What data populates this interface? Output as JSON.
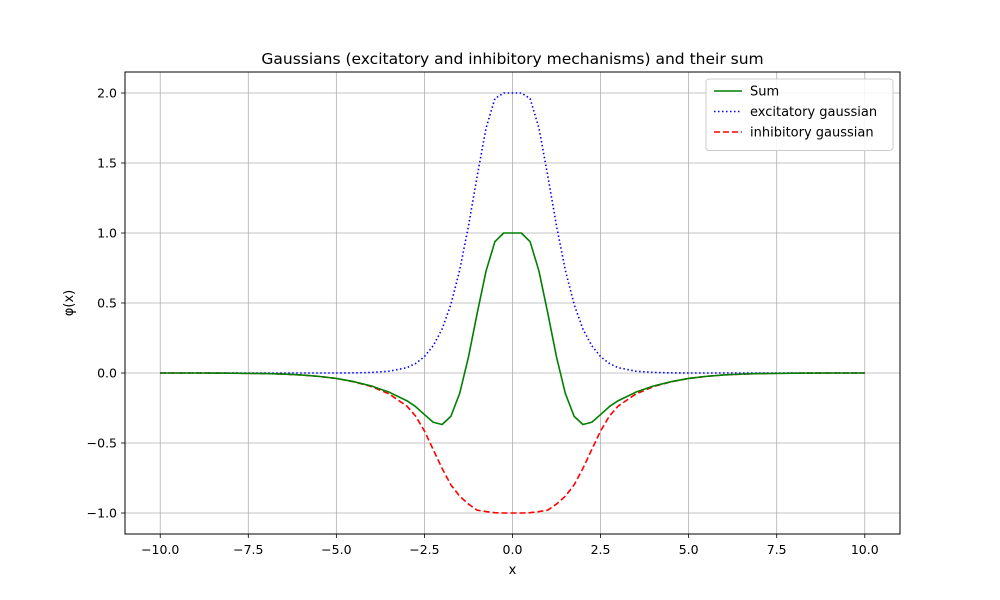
{
  "chart_data": {
    "type": "line",
    "title": "Gaussians (excitatory and inhibitory mechanisms) and their sum",
    "xlabel": "x",
    "ylabel": "φ(x)",
    "xlim": [
      -11,
      11
    ],
    "ylim": [
      -1.15,
      2.15
    ],
    "xticks": [
      -10.0,
      -7.5,
      -5.0,
      -2.5,
      0.0,
      2.5,
      5.0,
      7.5,
      10.0
    ],
    "xtick_labels": [
      "−10.0",
      "−7.5",
      "−5.0",
      "−2.5",
      "0.0",
      "2.5",
      "5.0",
      "7.5",
      "10.0"
    ],
    "yticks": [
      -1.0,
      -0.5,
      0.0,
      0.5,
      1.0,
      1.5,
      2.0
    ],
    "ytick_labels": [
      "−1.0",
      "−0.5",
      "0.0",
      "0.5",
      "1.0",
      "1.5",
      "2.0"
    ],
    "grid": true,
    "legend_position": "top-right",
    "x": [
      -10.0,
      -9.0,
      -8.0,
      -7.0,
      -6.5,
      -6.0,
      -5.5,
      -5.0,
      -4.5,
      -4.0,
      -3.5,
      -3.0,
      -2.75,
      -2.5,
      -2.25,
      -2.0,
      -1.75,
      -1.5,
      -1.25,
      -1.0,
      -0.75,
      -0.5,
      -0.25,
      0.0,
      0.25,
      0.5,
      0.75,
      1.0,
      1.25,
      1.5,
      1.75,
      2.0,
      2.25,
      2.5,
      2.75,
      3.0,
      3.5,
      4.0,
      4.5,
      5.0,
      5.5,
      6.0,
      6.5,
      7.0,
      8.0,
      9.0,
      10.0
    ],
    "series": [
      {
        "name": "Sum",
        "color": "#008000",
        "style": "solid",
        "values": [
          0.0,
          0.0,
          -0.001,
          -0.004,
          -0.008,
          -0.014,
          -0.024,
          -0.039,
          -0.062,
          -0.093,
          -0.137,
          -0.198,
          -0.24,
          -0.297,
          -0.352,
          -0.368,
          -0.31,
          -0.146,
          0.114,
          0.43,
          0.729,
          0.938,
          1.0,
          1.0,
          1.0,
          0.938,
          0.729,
          0.43,
          0.114,
          -0.146,
          -0.31,
          -0.368,
          -0.352,
          -0.297,
          -0.24,
          -0.198,
          -0.137,
          -0.093,
          -0.062,
          -0.039,
          -0.024,
          -0.014,
          -0.008,
          -0.004,
          -0.001,
          0.0,
          0.0
        ]
      },
      {
        "name": "excitatory gaussian",
        "color": "#0000ff",
        "style": "dotted",
        "values": [
          0.0,
          0.0,
          0.0,
          0.0,
          0.0,
          0.0,
          0.0,
          0.0,
          0.001,
          0.004,
          0.013,
          0.038,
          0.068,
          0.117,
          0.195,
          0.313,
          0.489,
          0.734,
          1.05,
          1.41,
          1.75,
          1.96,
          2.0,
          2.0,
          2.0,
          1.96,
          1.75,
          1.41,
          1.05,
          0.734,
          0.489,
          0.313,
          0.195,
          0.117,
          0.068,
          0.038,
          0.013,
          0.004,
          0.001,
          0.0,
          0.0,
          0.0,
          0.0,
          0.0,
          0.0,
          0.0,
          0.0
        ]
      },
      {
        "name": "inhibitory gaussian",
        "color": "#ff0000",
        "style": "dashed",
        "values": [
          0.0,
          0.0,
          -0.001,
          -0.004,
          -0.008,
          -0.014,
          -0.024,
          -0.039,
          -0.063,
          -0.097,
          -0.15,
          -0.236,
          -0.308,
          -0.414,
          -0.547,
          -0.681,
          -0.799,
          -0.88,
          -0.936,
          -0.98,
          -0.99,
          -0.998,
          -1.0,
          -1.0,
          -1.0,
          -0.998,
          -0.99,
          -0.98,
          -0.936,
          -0.88,
          -0.799,
          -0.681,
          -0.547,
          -0.414,
          -0.308,
          -0.236,
          -0.15,
          -0.097,
          -0.063,
          -0.039,
          -0.024,
          -0.014,
          -0.008,
          -0.004,
          -0.001,
          0.0,
          0.0
        ]
      }
    ]
  }
}
